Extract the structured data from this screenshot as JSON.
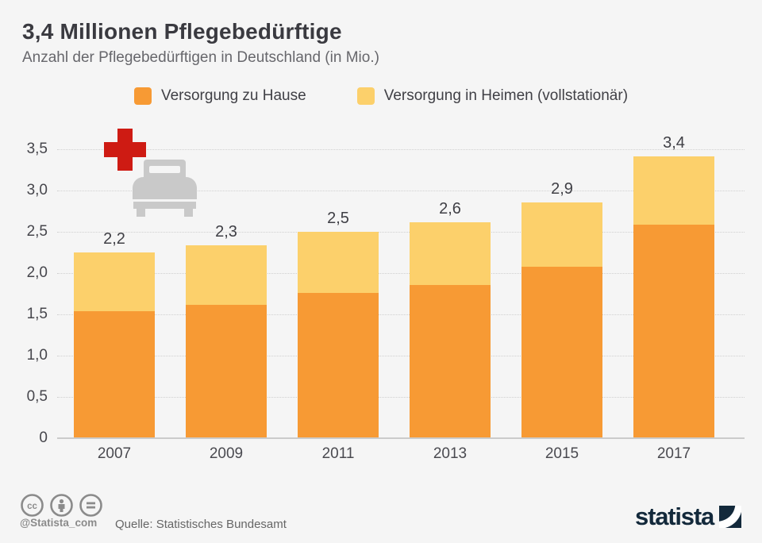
{
  "header": {
    "title": "3,4 Millionen Pflegebedürftige",
    "subtitle": "Anzahl der Pflegebedürftigen in Deutschland (in Mio.)"
  },
  "legend": [
    {
      "label": "Versorgung zu Hause",
      "color": "#F79A34"
    },
    {
      "label": "Versorgung in Heimen (vollstationär)",
      "color": "#FCD06B"
    }
  ],
  "chart_data": {
    "type": "bar",
    "stacked": true,
    "title": "3,4 Millionen Pflegebedürftige",
    "subtitle": "Anzahl der Pflegebedürftigen in Deutschland (in Mio.)",
    "categories": [
      "2007",
      "2009",
      "2011",
      "2013",
      "2015",
      "2017"
    ],
    "series": [
      {
        "name": "Versorgung zu Hause",
        "color": "#F79A34",
        "values": [
          1.54,
          1.62,
          1.76,
          1.86,
          2.08,
          2.59
        ]
      },
      {
        "name": "Versorgung in Heimen (vollstationär)",
        "color": "#FCD06B",
        "values": [
          0.71,
          0.72,
          0.74,
          0.76,
          0.78,
          0.82
        ]
      }
    ],
    "total_labels": [
      "2,2",
      "2,3",
      "2,5",
      "2,6",
      "2,9",
      "3,4"
    ],
    "y_tick_labels": [
      "0",
      "0,5",
      "1,0",
      "1,5",
      "2,0",
      "2,5",
      "3,0",
      "3,5"
    ],
    "y_tick_values": [
      0,
      0.5,
      1.0,
      1.5,
      2.0,
      2.5,
      3.0,
      3.5
    ],
    "ylim": [
      0,
      3.5
    ],
    "grid": "horizontal-dotted",
    "legend_position": "top-center",
    "pictogram": "red-cross-and-hospital-bed"
  },
  "icons": {
    "red_cross_color": "#CE1B13",
    "bed_color": "#C9C9C9",
    "cc_icons": [
      "cc",
      "attribution-person",
      "no-derivatives-equals"
    ],
    "cc_color": "#8B8B8B"
  },
  "footer": {
    "handle": "@Statista_com",
    "source": "Quelle: Statistisches Bundesamt",
    "brand": "statista",
    "brand_color": "#13293B"
  },
  "colors": {
    "background": "#F5F5F5",
    "title_text": "#3A3A40",
    "subtitle_text": "#67676C",
    "axis_text": "#46464C",
    "gridline": "#D0D0D0"
  }
}
